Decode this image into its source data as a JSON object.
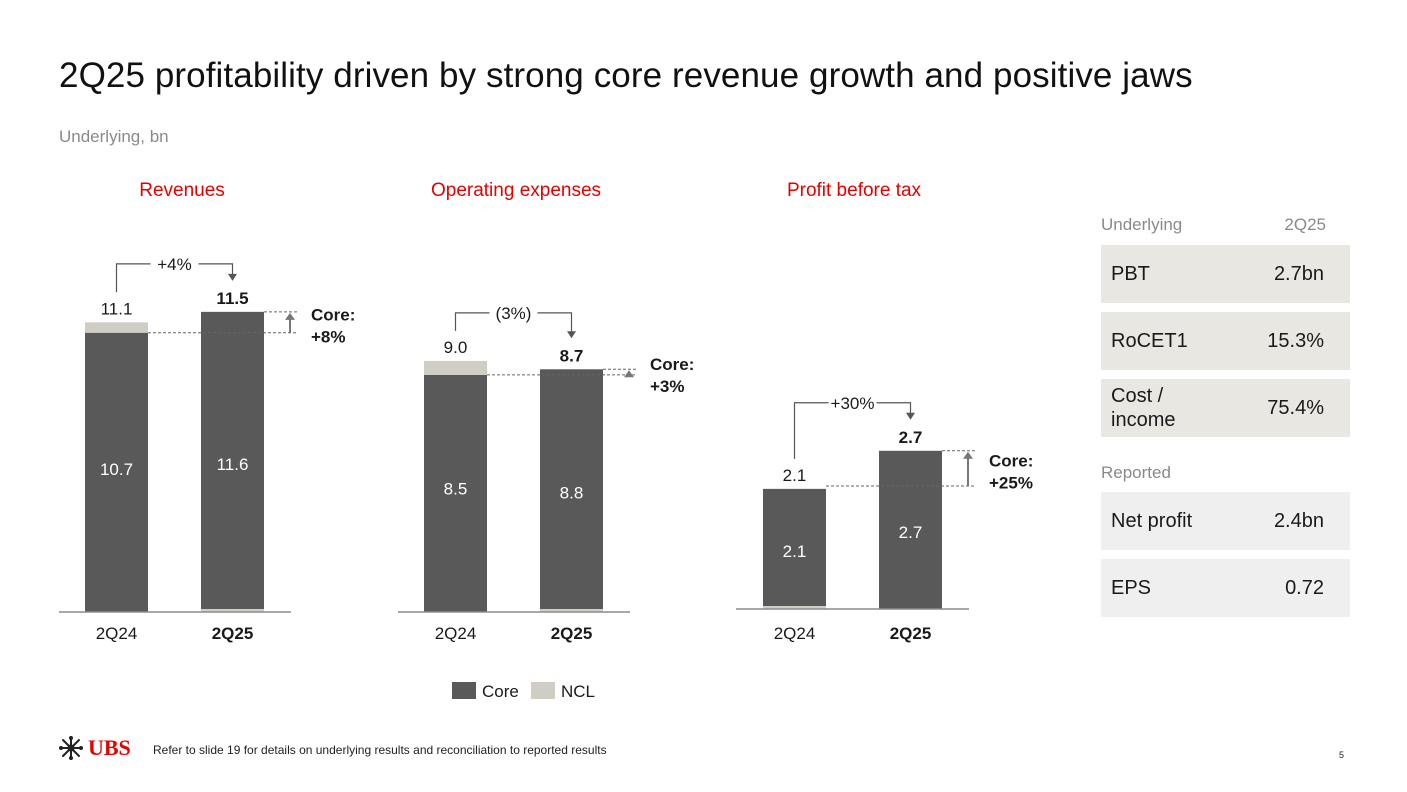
{
  "title": "2Q25 profitability driven by strong core revenue growth and positive jaws",
  "subtitle": "Underlying, bn",
  "colors": {
    "core": "#595959",
    "ncl": "#d0cec4",
    "accent": "#e60000",
    "axis": "#8c8c8c"
  },
  "chart_data": [
    {
      "type": "bar",
      "title": "Revenues",
      "categories": [
        "2Q24",
        "2Q25"
      ],
      "series": [
        {
          "name": "Core",
          "values": [
            10.7,
            11.6
          ],
          "labels": [
            "10.7",
            "11.6"
          ]
        },
        {
          "name": "NCL",
          "values": [
            0.4,
            -0.1
          ]
        }
      ],
      "totals": [
        "11.1",
        "11.5"
      ],
      "change": "+4%",
      "core_label": "Core:",
      "core_change": "+8%",
      "ylim": [
        0,
        12.5
      ]
    },
    {
      "type": "bar",
      "title": "Operating expenses",
      "categories": [
        "2Q24",
        "2Q25"
      ],
      "series": [
        {
          "name": "Core",
          "values": [
            8.5,
            8.8
          ],
          "labels": [
            "8.5",
            "8.8"
          ]
        },
        {
          "name": "NCL",
          "values": [
            0.5,
            -0.1
          ]
        }
      ],
      "totals": [
        "9.0",
        "8.7"
      ],
      "change": "(3%)",
      "core_label": "Core:",
      "core_change": "+3%",
      "ylim": [
        0,
        12.5
      ]
    },
    {
      "type": "bar",
      "title": "Profit before tax",
      "categories": [
        "2Q24",
        "2Q25"
      ],
      "series": [
        {
          "name": "Core",
          "values": [
            2.1,
            2.7
          ],
          "labels": [
            "2.1",
            "2.7"
          ]
        },
        {
          "name": "NCL",
          "values": [
            -0.05,
            0.0
          ]
        }
      ],
      "totals": [
        "2.1",
        "2.7"
      ],
      "change": "+30%",
      "core_label": "Core:",
      "core_change": "+25%",
      "ylim": [
        0,
        5.3
      ]
    }
  ],
  "legend": [
    {
      "name": "Core",
      "label": "Core"
    },
    {
      "name": "NCL",
      "label": "NCL"
    }
  ],
  "kpis": {
    "underlying_label": "Underlying",
    "period_label": "2Q25",
    "underlying": [
      {
        "label": "PBT",
        "value": "2.7bn"
      },
      {
        "label": "RoCET1",
        "value": "15.3%"
      },
      {
        "label": "Cost / income",
        "value": "75.4%"
      }
    ],
    "reported_label": "Reported",
    "reported": [
      {
        "label": "Net profit",
        "value": "2.4bn"
      },
      {
        "label": "EPS",
        "value": "0.72"
      }
    ]
  },
  "footer": {
    "logo_text": "UBS",
    "note": "Refer to slide 19 for details on underlying results and reconciliation to reported results",
    "page_number": "5"
  }
}
